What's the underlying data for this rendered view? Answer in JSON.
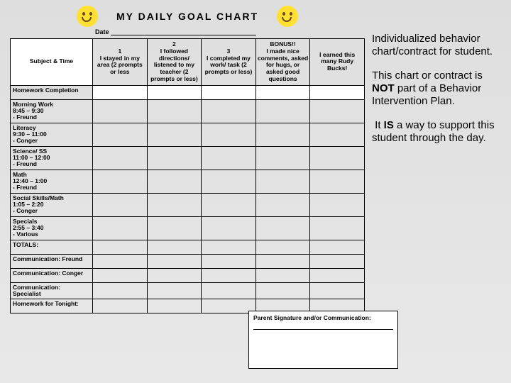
{
  "title": "MY DAILY GOAL CHART",
  "date_label": "Date",
  "columns": {
    "subject": "Subject\n& Time",
    "c1": {
      "n": "1",
      "t": "I stayed in my area\n(2 prompts or less"
    },
    "c2": {
      "n": "2",
      "t": "I followed directions/ listened to my teacher\n(2 prompts or less)"
    },
    "c3": {
      "n": "3",
      "t": "I completed my work/ task\n(2 prompts or less)"
    },
    "bonus": {
      "n": "BONUS!!",
      "t": "I made nice comments, asked for hugs, or asked good questions"
    },
    "earned": "I earned this many Rudy Bucks!"
  },
  "rows": [
    "Homework Completion",
    "Morning Work\n8:45 – 9:30\n- Freund",
    "Literacy\n9:30 – 11:00\n- Conger",
    "Science/ SS\n11:00 – 12:00\n- Freund",
    "Math\n12:40 – 1:00\n- Freund",
    "Social Skills/Math\n1:05 – 2:20\n- Conger",
    "Specials\n2:55 – 3:40\n- Various",
    "TOTALS:",
    "Communication: Freund",
    "Communication: Conger",
    "Communication: Specialist",
    "Homework for Tonight:"
  ],
  "sig_label": "Parent Signature and/or Communication:",
  "side": {
    "p1": "Individualized behavior chart/contract for student.",
    "p2a": "This chart or contract is ",
    "p2b": "NOT",
    "p2c": " part of a Behavior Intervention Plan.",
    "p3a": " It ",
    "p3b": "IS",
    "p3c": " a way to support this student through the day."
  },
  "colors": {
    "bg_top": "#dedede",
    "bg_bot": "#e8e8e8",
    "smiley": "#ffe033",
    "border": "#000000",
    "white": "#ffffff"
  }
}
